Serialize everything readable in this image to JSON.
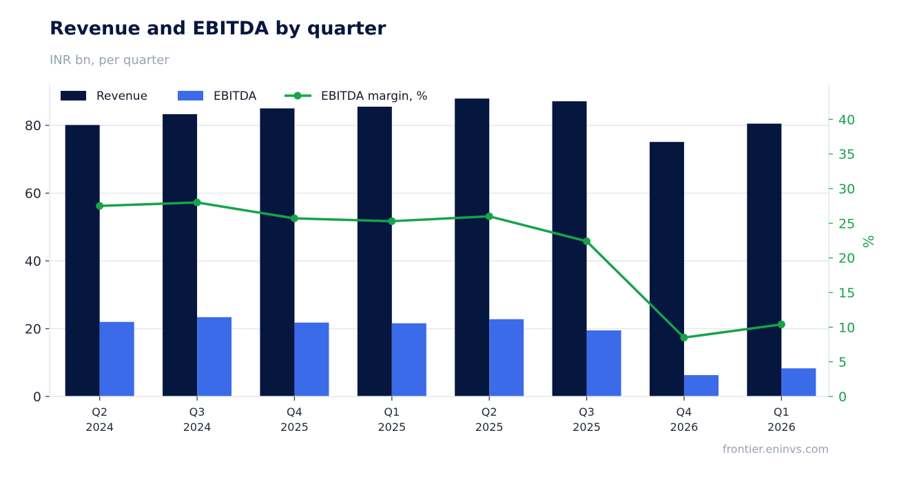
{
  "chart_data": {
    "type": "bar",
    "title": "Revenue and EBITDA by quarter",
    "subtitle": "INR bn, per quarter",
    "source": "frontier.eninvs.com",
    "categories": [
      [
        "Q2",
        "2024"
      ],
      [
        "Q3",
        "2024"
      ],
      [
        "Q4",
        "2025"
      ],
      [
        "Q1",
        "2025"
      ],
      [
        "Q2",
        "2025"
      ],
      [
        "Q3",
        "2025"
      ],
      [
        "Q4",
        "2026"
      ],
      [
        "Q1",
        "2026"
      ]
    ],
    "series": [
      {
        "name": "Revenue",
        "type": "bar",
        "axis": "left",
        "color": "#05163f",
        "values": [
          80.1,
          83.3,
          85.0,
          85.5,
          87.9,
          87.1,
          75.1,
          80.5
        ]
      },
      {
        "name": "EBITDA",
        "type": "bar",
        "axis": "left",
        "color": "#3b6be8",
        "values": [
          22.0,
          23.4,
          21.8,
          21.6,
          22.8,
          19.5,
          6.3,
          8.3
        ]
      },
      {
        "name": "EBITDA margin, %",
        "type": "line",
        "axis": "right",
        "color": "#16a34a",
        "values": [
          27.5,
          28.0,
          25.7,
          25.3,
          26.0,
          22.4,
          8.5,
          10.4
        ]
      }
    ],
    "y_left": {
      "min": 0,
      "max": 92,
      "ticks": [
        0,
        20,
        40,
        60,
        80
      ]
    },
    "y_right": {
      "label": "%",
      "min": 0,
      "max": 45,
      "ticks": [
        0,
        5,
        10,
        15,
        20,
        25,
        30,
        35,
        40
      ],
      "color": "#16a34a"
    },
    "grid": true,
    "legend": "top-left"
  }
}
